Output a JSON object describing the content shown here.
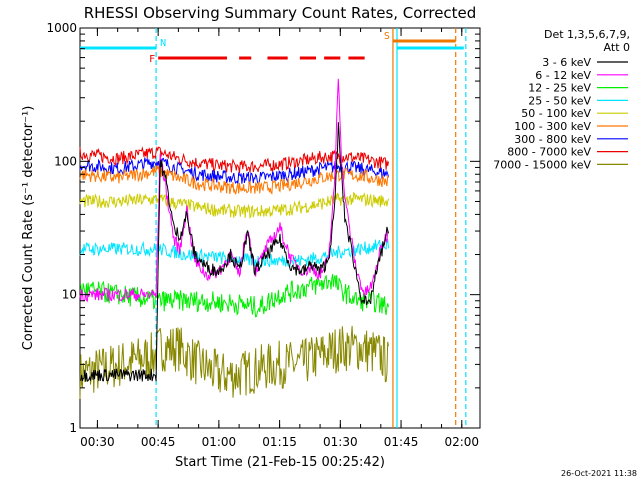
{
  "chart_data": {
    "type": "line",
    "title": "RHESSI Observing Summary Count Rates, Corrected",
    "xlabel": "Start Time (21-Feb-15 00:25:42)",
    "ylabel": "Corrected Count Rate (s⁻¹ detector⁻¹)",
    "y_scale": "log",
    "ylim": [
      1,
      1000
    ],
    "xlim": [
      "00:25:42",
      "02:04:30"
    ],
    "x_ticks": [
      "00:30",
      "00:45",
      "01:00",
      "01:15",
      "01:30",
      "01:45",
      "02:00"
    ],
    "y_ticks": [
      "1",
      "10",
      "100",
      "1000"
    ],
    "legend_header": [
      "Det 1,3,5,6,7,9,",
      "Att 0"
    ],
    "legend_position": "right",
    "timestamp": "26-Oct-2021 11:38",
    "flags": [
      {
        "label": "N",
        "color": "#00e5ff",
        "description_segments": [
          [
            "00:25:42",
            "00:44:30"
          ],
          [
            "01:44:00",
            "02:00:30"
          ]
        ]
      },
      {
        "label": "F",
        "color": "#ee0000",
        "segments": [
          [
            "00:45:00",
            "01:02:00"
          ],
          [
            "01:05:00",
            "01:08:00"
          ],
          [
            "01:12:00",
            "01:17:00"
          ],
          [
            "01:20:00",
            "01:24:00"
          ],
          [
            "01:26:00",
            "01:30:00"
          ],
          [
            "01:32:00",
            "01:36:00"
          ]
        ]
      },
      {
        "label": "S",
        "color": "#ee7700",
        "segments": [
          [
            "01:43:00",
            "01:58:30"
          ]
        ]
      }
    ],
    "vertical_lines": [
      {
        "time": "00:44:30",
        "color": "#00e5ff",
        "style": "dashed"
      },
      {
        "time": "01:43:00",
        "color": "#ee7700",
        "style": "solid"
      },
      {
        "time": "01:44:00",
        "color": "#00e5ff",
        "style": "solid"
      },
      {
        "time": "01:58:30",
        "color": "#ee7700",
        "style": "dashed"
      },
      {
        "time": "02:01:00",
        "color": "#00e5ff",
        "style": "dashed"
      }
    ],
    "series": [
      {
        "name": "3 - 6 keV",
        "color": "#000000",
        "points": [
          [
            "00:25:42",
            2.5
          ],
          [
            "00:44:30",
            2.5
          ],
          [
            "00:45:30",
            100
          ],
          [
            "00:47:00",
            70
          ],
          [
            "00:49:00",
            30
          ],
          [
            "00:50:30",
            28
          ],
          [
            "00:52:00",
            40
          ],
          [
            "00:54:00",
            20
          ],
          [
            "00:57:00",
            16
          ],
          [
            "01:00:00",
            15
          ],
          [
            "01:03:00",
            20
          ],
          [
            "01:05:00",
            15
          ],
          [
            "01:07:00",
            28
          ],
          [
            "01:09:00",
            15
          ],
          [
            "01:12:00",
            20
          ],
          [
            "01:15:00",
            26
          ],
          [
            "01:18:00",
            16
          ],
          [
            "01:21:00",
            15
          ],
          [
            "01:23:00",
            17
          ],
          [
            "01:25:00",
            15
          ],
          [
            "01:27:00",
            18
          ],
          [
            "01:28:30",
            40
          ],
          [
            "01:29:30",
            180
          ],
          [
            "01:31:00",
            40
          ],
          [
            "01:33:00",
            20
          ],
          [
            "01:35:00",
            10
          ],
          [
            "01:37:00",
            8
          ],
          [
            "01:39:00",
            15
          ],
          [
            "01:41:30",
            30
          ],
          [
            "01:42:00",
            25
          ]
        ]
      },
      {
        "name": "6 - 12 keV",
        "color": "#ff00ff",
        "points": [
          [
            "00:25:42",
            10
          ],
          [
            "00:44:30",
            10
          ],
          [
            "00:45:30",
            115
          ],
          [
            "00:47:00",
            60
          ],
          [
            "00:49:00",
            25
          ],
          [
            "00:50:30",
            22
          ],
          [
            "00:52:00",
            45
          ],
          [
            "00:54:00",
            18
          ],
          [
            "00:57:00",
            14
          ],
          [
            "01:00:00",
            15
          ],
          [
            "01:03:00",
            20
          ],
          [
            "01:05:00",
            14
          ],
          [
            "01:07:00",
            32
          ],
          [
            "01:09:00",
            15
          ],
          [
            "01:12:00",
            23
          ],
          [
            "01:15:00",
            32
          ],
          [
            "01:18:00",
            18
          ],
          [
            "01:21:00",
            15
          ],
          [
            "01:23:00",
            16
          ],
          [
            "01:25:00",
            14
          ],
          [
            "01:27:00",
            18
          ],
          [
            "01:28:30",
            60
          ],
          [
            "01:29:30",
            450
          ],
          [
            "01:30:30",
            80
          ],
          [
            "01:32:00",
            35
          ],
          [
            "01:34:00",
            15
          ],
          [
            "01:36:00",
            10
          ],
          [
            "01:38:00",
            12
          ],
          [
            "01:40:00",
            22
          ],
          [
            "01:42:00",
            30
          ]
        ]
      },
      {
        "name": "12 - 25 keV",
        "color": "#00ee00",
        "points": [
          [
            "00:25:42",
            11
          ],
          [
            "00:35:00",
            10
          ],
          [
            "00:45:00",
            9
          ],
          [
            "00:55:00",
            9
          ],
          [
            "01:05:00",
            8.5
          ],
          [
            "01:10:00",
            8
          ],
          [
            "01:15:00",
            10
          ],
          [
            "01:20:00",
            11
          ],
          [
            "01:25:00",
            12
          ],
          [
            "01:28:00",
            13
          ],
          [
            "01:30:00",
            11
          ],
          [
            "01:34:00",
            9
          ],
          [
            "01:38:00",
            9
          ],
          [
            "01:42:00",
            8
          ]
        ]
      },
      {
        "name": "25 - 50 keV",
        "color": "#00e5ff",
        "points": [
          [
            "00:25:42",
            22
          ],
          [
            "00:35:00",
            22
          ],
          [
            "00:45:00",
            22
          ],
          [
            "00:52:00",
            20
          ],
          [
            "01:00:00",
            19
          ],
          [
            "01:08:00",
            18
          ],
          [
            "01:15:00",
            18
          ],
          [
            "01:20:00",
            18
          ],
          [
            "01:25:00",
            19
          ],
          [
            "01:30:00",
            21
          ],
          [
            "01:35:00",
            22
          ],
          [
            "01:42:00",
            24
          ]
        ]
      },
      {
        "name": "50 - 100 keV",
        "color": "#cccc00",
        "points": [
          [
            "00:25:42",
            50
          ],
          [
            "00:35:00",
            50
          ],
          [
            "00:45:00",
            52
          ],
          [
            "00:50:00",
            48
          ],
          [
            "00:55:00",
            45
          ],
          [
            "01:00:00",
            43
          ],
          [
            "01:05:00",
            42
          ],
          [
            "01:10:00",
            42
          ],
          [
            "01:15:00",
            43
          ],
          [
            "01:20:00",
            45
          ],
          [
            "01:25:00",
            48
          ],
          [
            "01:30:00",
            52
          ],
          [
            "01:35:00",
            52
          ],
          [
            "01:42:00",
            50
          ]
        ]
      },
      {
        "name": "100 - 300 keV",
        "color": "#ff7700",
        "points": [
          [
            "00:25:42",
            80
          ],
          [
            "00:35:00",
            75
          ],
          [
            "00:45:00",
            85
          ],
          [
            "00:50:00",
            75
          ],
          [
            "00:55:00",
            68
          ],
          [
            "01:00:00",
            65
          ],
          [
            "01:05:00",
            63
          ],
          [
            "01:10:00",
            63
          ],
          [
            "01:15:00",
            65
          ],
          [
            "01:20:00",
            70
          ],
          [
            "01:25:00",
            75
          ],
          [
            "01:30:00",
            80
          ],
          [
            "01:35:00",
            78
          ],
          [
            "01:42:00",
            70
          ]
        ]
      },
      {
        "name": "300 - 800 keV",
        "color": "#0000ff",
        "points": [
          [
            "00:25:42",
            95
          ],
          [
            "00:35:00",
            88
          ],
          [
            "00:45:00",
            100
          ],
          [
            "00:50:00",
            88
          ],
          [
            "00:55:00",
            80
          ],
          [
            "01:00:00",
            77
          ],
          [
            "01:05:00",
            75
          ],
          [
            "01:10:00",
            75
          ],
          [
            "01:15:00",
            78
          ],
          [
            "01:20:00",
            82
          ],
          [
            "01:25:00",
            88
          ],
          [
            "01:30:00",
            92
          ],
          [
            "01:35:00",
            88
          ],
          [
            "01:42:00",
            80
          ]
        ]
      },
      {
        "name": "800 - 7000 keV",
        "color": "#ee0000",
        "points": [
          [
            "00:25:42",
            115
          ],
          [
            "00:35:00",
            105
          ],
          [
            "00:45:00",
            118
          ],
          [
            "00:50:00",
            105
          ],
          [
            "00:55:00",
            97
          ],
          [
            "01:00:00",
            93
          ],
          [
            "01:05:00",
            91
          ],
          [
            "01:10:00",
            92
          ],
          [
            "01:15:00",
            95
          ],
          [
            "01:20:00",
            100
          ],
          [
            "01:25:00",
            107
          ],
          [
            "01:30:00",
            110
          ],
          [
            "01:35:00",
            105
          ],
          [
            "01:42:00",
            95
          ]
        ]
      },
      {
        "name": "7000 - 15000 keV",
        "color": "#888800",
        "points": [
          [
            "00:25:42",
            2.5
          ],
          [
            "00:44:00",
            3.5
          ],
          [
            "00:45:30",
            4
          ],
          [
            "00:50:00",
            4
          ],
          [
            "00:55:00",
            3
          ],
          [
            "01:00:00",
            2.5
          ],
          [
            "01:05:00",
            2.5
          ],
          [
            "01:10:00",
            2.8
          ],
          [
            "01:15:00",
            3
          ],
          [
            "01:20:00",
            3
          ],
          [
            "01:25:00",
            3.5
          ],
          [
            "01:30:00",
            4
          ],
          [
            "01:35:00",
            4
          ],
          [
            "01:40:00",
            3.5
          ],
          [
            "01:42:00",
            3
          ]
        ]
      }
    ]
  }
}
